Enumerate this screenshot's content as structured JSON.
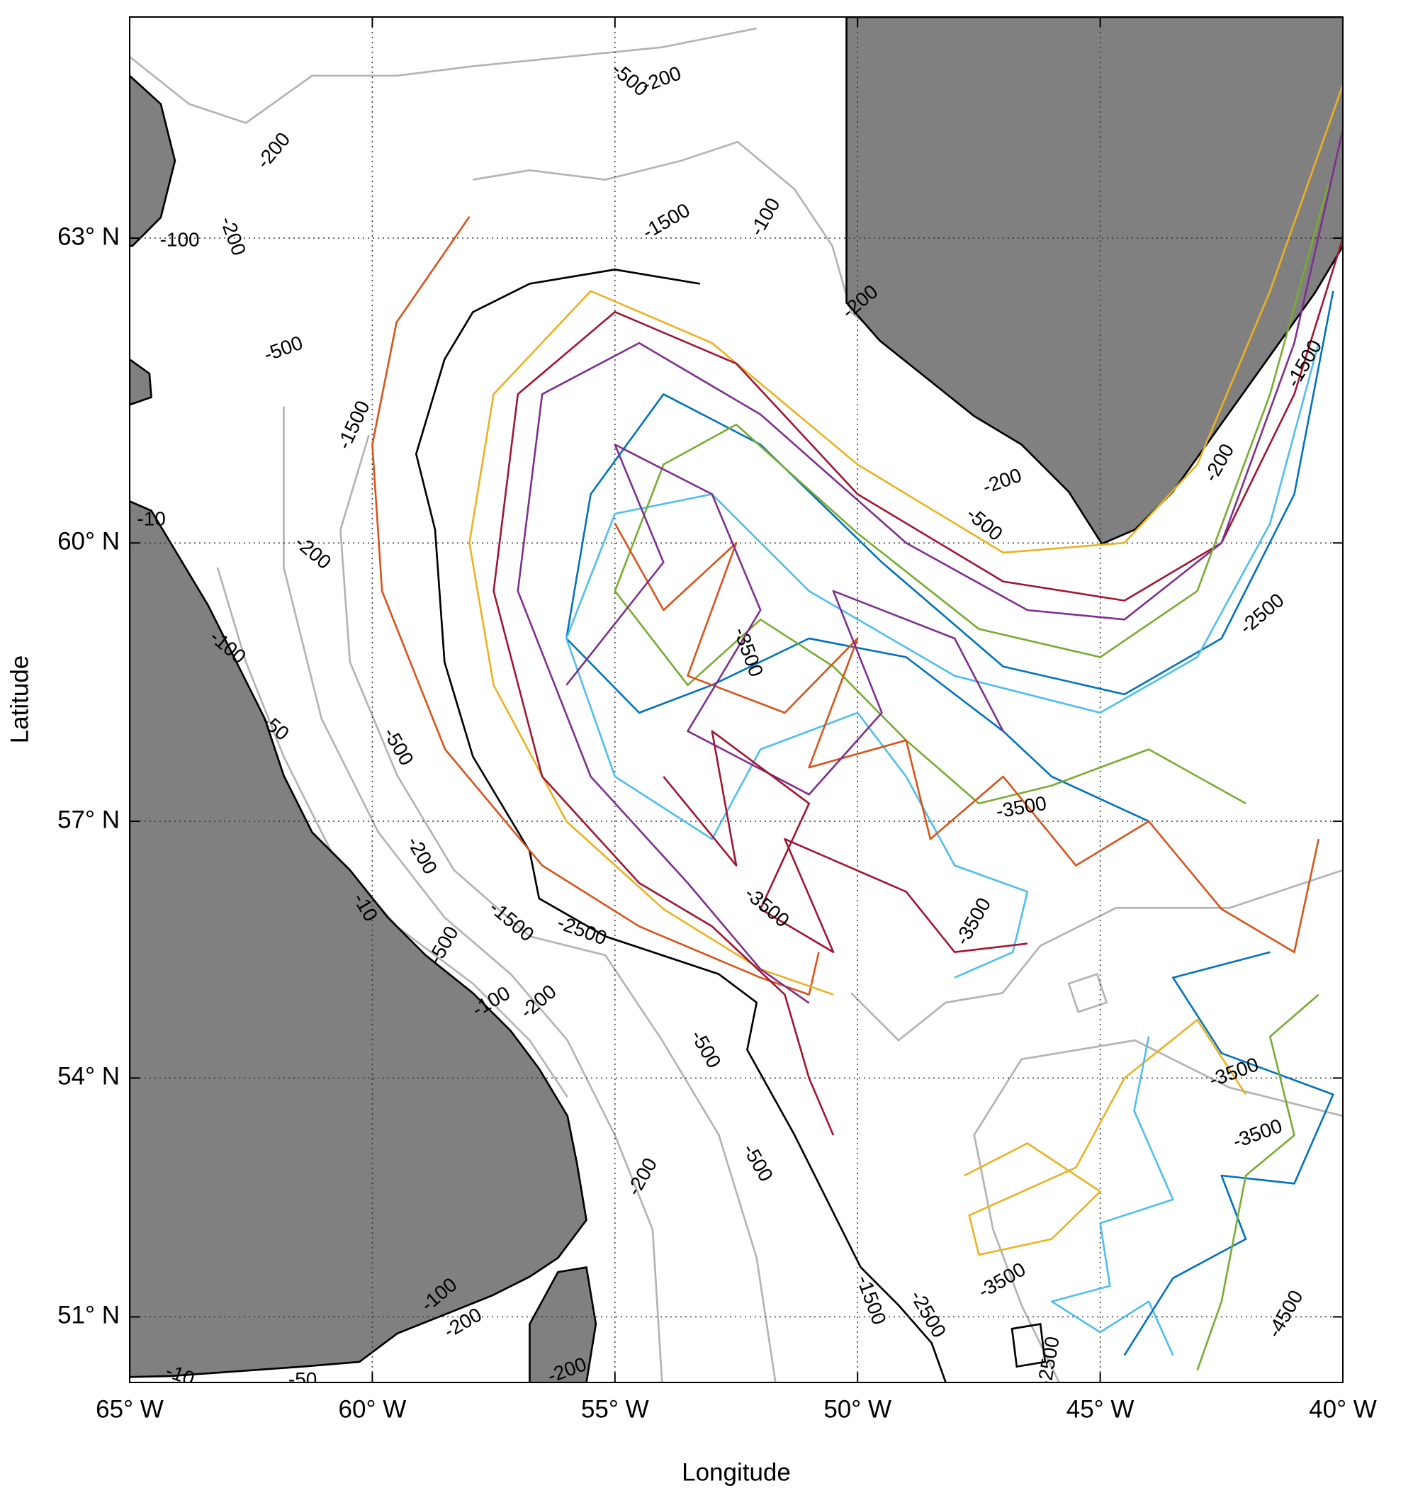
{
  "chart_data": {
    "type": "line",
    "projection": "mercator",
    "x_label": "Longitude",
    "y_label": "Latitude",
    "grid": true,
    "xlim": [
      -65,
      -40
    ],
    "ylim": [
      50.14,
      65.0
    ],
    "xticks": [
      {
        "value": -65,
        "label": "65° W"
      },
      {
        "value": -60,
        "label": "60° W"
      },
      {
        "value": -55,
        "label": "55° W"
      },
      {
        "value": -50,
        "label": "50° W"
      },
      {
        "value": -45,
        "label": "45° W"
      },
      {
        "value": -40,
        "label": "40° W"
      }
    ],
    "yticks": [
      {
        "value": 51,
        "label": "51° N"
      },
      {
        "value": 54,
        "label": "54° N"
      },
      {
        "value": 57,
        "label": "57° N"
      },
      {
        "value": 60,
        "label": "60° N"
      },
      {
        "value": 63,
        "label": "63° N"
      }
    ],
    "contour_labels": [
      "-200",
      "-500",
      "-200",
      "-200",
      "-500",
      "-1500",
      "-1500",
      "-200",
      "-100",
      "-200",
      "-500",
      "-200",
      "-1500",
      "-2500",
      "-3500",
      "-3500",
      "-3500",
      "-3500",
      "-2500",
      "-3500",
      "-3500",
      "-500",
      "-200",
      "-200",
      "-1500",
      "-500",
      "-500",
      "-200",
      "-1500",
      "-2500",
      "-3500",
      "-4500",
      "-100",
      "-200",
      "-50",
      "-100",
      "-10",
      "-500",
      "-100",
      "-200",
      "-10",
      "-50",
      "-200",
      "-2500",
      "-100",
      "-10"
    ],
    "series": [
      {
        "color": "#D95319",
        "x": [
          -58,
          -59.5,
          -60,
          -59.8,
          -58.5,
          -56.5,
          -54.5,
          -52,
          -51,
          -50.8
        ],
        "values": [
          63.2,
          62.2,
          61,
          59.5,
          57.8,
          56.5,
          55.8,
          55.2,
          55,
          55.5
        ]
      },
      {
        "color": "#EDB120",
        "x": [
          -40,
          -41.5,
          -43,
          -44.5,
          -47,
          -50,
          -53,
          -55.5,
          -57.5,
          -58,
          -57.5,
          -56,
          -54,
          -52,
          -50.5
        ],
        "values": [
          64.4,
          62.5,
          60.8,
          60,
          59.9,
          60.8,
          62,
          62.5,
          61.5,
          60,
          58.5,
          57,
          56,
          55.3,
          55
        ]
      },
      {
        "color": "#A2142F",
        "x": [
          -40,
          -41,
          -42.5,
          -44.5,
          -47,
          -50,
          -52.5,
          -55,
          -57,
          -57.5,
          -56.5,
          -54.5,
          -53,
          -51.5,
          -51,
          -50.5
        ],
        "values": [
          63,
          61.5,
          60,
          59.4,
          59.6,
          60.5,
          61.8,
          62.3,
          61.5,
          59.5,
          57.5,
          56.3,
          55.8,
          55,
          54,
          53.3
        ]
      },
      {
        "color": "#7E2F8E",
        "x": [
          -40,
          -41,
          -42.5,
          -44.5,
          -46.5,
          -49,
          -52,
          -54.5,
          -56.5,
          -57,
          -55.5,
          -53.5,
          -52,
          -51
        ],
        "values": [
          64,
          62,
          60,
          59.2,
          59.3,
          60,
          61.3,
          62,
          61.5,
          59.5,
          57.5,
          56.3,
          55.3,
          54.9
        ]
      },
      {
        "color": "#0072BD",
        "x": [
          -40.2,
          -41,
          -42.5,
          -44.5,
          -47,
          -49.5,
          -52,
          -54,
          -55.5,
          -56,
          -54.5,
          -53,
          -51,
          -49,
          -47,
          -46,
          -44
        ],
        "values": [
          62.5,
          60.5,
          59,
          58.4,
          58.7,
          59.8,
          61,
          61.5,
          60.5,
          59,
          58.2,
          58.5,
          59,
          58.8,
          58,
          57.5,
          57
        ]
      },
      {
        "color": "#4DBEEE",
        "x": [
          -40.5,
          -41.5,
          -43,
          -45,
          -48,
          -51,
          -53,
          -55,
          -56,
          -55,
          -53,
          -52,
          -50,
          -49,
          -48,
          -46.5,
          -46.8,
          -48
        ],
        "values": [
          62,
          60.2,
          58.8,
          58.2,
          58.6,
          59.5,
          60.5,
          60.3,
          59,
          57.5,
          56.8,
          57.8,
          58.2,
          57.5,
          56.5,
          56.2,
          55.5,
          55.2
        ]
      },
      {
        "color": "#77AC30",
        "x": [
          -40.3,
          -41.5,
          -43,
          -45,
          -47.5,
          -50,
          -52.5,
          -54,
          -55,
          -53.5,
          -52,
          -50.5,
          -49,
          -47.5,
          -46,
          -44,
          -42
        ],
        "values": [
          63.5,
          61.5,
          59.5,
          58.8,
          59.1,
          60.1,
          61.2,
          60.8,
          59.5,
          58.5,
          59.2,
          58.7,
          57.9,
          57.2,
          57.4,
          57.8,
          57.2
        ]
      },
      {
        "color": "#D95319",
        "x": [
          -55,
          -54,
          -52.5,
          -53.5,
          -51.5,
          -50,
          -51,
          -49,
          -48.5,
          -47,
          -45.5,
          -44,
          -42.5,
          -41,
          -40.5
        ],
        "values": [
          60.2,
          59.3,
          60,
          58.6,
          58.2,
          59,
          57.6,
          57.9,
          56.8,
          57.5,
          56.5,
          57,
          56,
          55.5,
          56.8
        ]
      },
      {
        "color": "#EDB120",
        "x": [
          -47.8,
          -46.5,
          -45,
          -46,
          -47.5,
          -47.7,
          -45.5,
          -44.5,
          -43,
          -42
        ],
        "values": [
          52.8,
          53.2,
          52.6,
          52,
          51.8,
          52.3,
          52.9,
          54,
          54.7,
          53.8
        ]
      },
      {
        "color": "#4DBEEE",
        "x": [
          -44,
          -44.3,
          -43.5,
          -45,
          -44.8,
          -46,
          -45,
          -44,
          -43.5
        ],
        "values": [
          54.5,
          53.6,
          52.5,
          52.2,
          51.4,
          51.2,
          50.8,
          51.2,
          50.5
        ]
      },
      {
        "color": "#0072BD",
        "x": [
          -44.5,
          -43.5,
          -42,
          -42.5,
          -41,
          -40.2,
          -42.5,
          -43.5,
          -41.5
        ],
        "values": [
          50.5,
          51.5,
          52,
          52.8,
          52.7,
          53.8,
          54.3,
          55.2,
          55.5
        ]
      },
      {
        "color": "#77AC30",
        "x": [
          -43,
          -42.5,
          -42,
          -41,
          -41.5,
          -40.5
        ],
        "values": [
          50.3,
          51.2,
          52.8,
          53.3,
          54.5,
          55
        ]
      },
      {
        "color": "#7E2F8E",
        "x": [
          -56,
          -54,
          -55,
          -53,
          -52,
          -53.5,
          -51,
          -49.5,
          -50.5,
          -48,
          -47
        ],
        "values": [
          58.5,
          59.8,
          61,
          60.5,
          59.3,
          58,
          57.3,
          58.2,
          59.5,
          59,
          58
        ]
      },
      {
        "color": "#A2142F",
        "x": [
          -54,
          -52.5,
          -53,
          -51,
          -52,
          -50.5,
          -51.5,
          -49,
          -48,
          -46.5
        ],
        "values": [
          57.5,
          56.5,
          58,
          57.2,
          56,
          55.5,
          56.8,
          56.2,
          55.5,
          55.6
        ]
      }
    ]
  }
}
